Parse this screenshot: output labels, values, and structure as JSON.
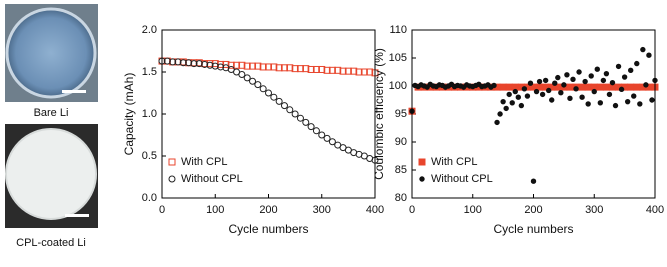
{
  "photos": [
    {
      "label": "Bare Li"
    },
    {
      "label": "CPL-coated Li"
    }
  ],
  "chart_data": [
    {
      "type": "scatter",
      "xlabel": "Cycle numbers",
      "ylabel": "Capacity (mAh)",
      "xlim": [
        0,
        400
      ],
      "xticks": [
        0,
        100,
        200,
        300,
        400
      ],
      "ylim": [
        0,
        2
      ],
      "yticks": [
        {
          "value": 0,
          "label": "0.0"
        },
        0.5,
        {
          "value": 1,
          "label": "1.0"
        },
        1.5,
        {
          "value": 2,
          "label": "2.0"
        }
      ],
      "legend": "lower left",
      "series": [
        {
          "name": "With CPL",
          "color": "#e8452c",
          "marker": "square",
          "filled": false,
          "x": [
            0,
            10,
            20,
            30,
            40,
            50,
            60,
            70,
            80,
            90,
            100,
            110,
            120,
            130,
            140,
            150,
            160,
            170,
            180,
            190,
            200,
            210,
            220,
            230,
            240,
            250,
            260,
            270,
            280,
            290,
            300,
            310,
            320,
            330,
            340,
            350,
            360,
            370,
            380,
            390,
            400
          ],
          "values": [
            1.63,
            1.63,
            1.62,
            1.62,
            1.62,
            1.61,
            1.61,
            1.61,
            1.6,
            1.6,
            1.6,
            1.59,
            1.59,
            1.58,
            1.58,
            1.58,
            1.57,
            1.57,
            1.57,
            1.56,
            1.56,
            1.56,
            1.55,
            1.55,
            1.55,
            1.54,
            1.54,
            1.54,
            1.53,
            1.53,
            1.53,
            1.52,
            1.52,
            1.52,
            1.51,
            1.51,
            1.51,
            1.5,
            1.5,
            1.5,
            1.49
          ]
        },
        {
          "name": "Without CPL",
          "color": "#222222",
          "marker": "circle",
          "filled": false,
          "x": [
            0,
            10,
            20,
            30,
            40,
            50,
            60,
            70,
            80,
            90,
            100,
            110,
            120,
            130,
            140,
            150,
            160,
            170,
            180,
            190,
            200,
            210,
            220,
            230,
            240,
            250,
            260,
            270,
            280,
            290,
            300,
            310,
            320,
            330,
            340,
            350,
            360,
            370,
            380,
            390,
            400
          ],
          "values": [
            1.63,
            1.63,
            1.62,
            1.62,
            1.61,
            1.61,
            1.6,
            1.6,
            1.59,
            1.58,
            1.57,
            1.56,
            1.55,
            1.53,
            1.5,
            1.47,
            1.43,
            1.39,
            1.35,
            1.3,
            1.25,
            1.2,
            1.15,
            1.1,
            1.05,
            1.0,
            0.95,
            0.9,
            0.85,
            0.8,
            0.75,
            0.71,
            0.67,
            0.63,
            0.6,
            0.57,
            0.54,
            0.52,
            0.5,
            0.47,
            0.45
          ]
        }
      ]
    },
    {
      "type": "scatter",
      "xlabel": "Cycle numbers",
      "ylabel": "Coulombic efficiency (%)",
      "xlim": [
        0,
        400
      ],
      "xticks": [
        0,
        100,
        200,
        300,
        400
      ],
      "ylim": [
        80,
        110
      ],
      "yticks": [
        80,
        85,
        90,
        95,
        100,
        105,
        110
      ],
      "legend": "lower left",
      "series": [
        {
          "name": "With CPL",
          "color": "#e8452c",
          "marker": "square",
          "filled": true,
          "x": [
            0,
            10,
            20,
            30,
            40,
            50,
            60,
            70,
            80,
            90,
            100,
            110,
            120,
            130,
            140,
            150,
            160,
            170,
            180,
            190,
            200,
            210,
            220,
            230,
            240,
            250,
            260,
            270,
            280,
            290,
            300,
            310,
            320,
            330,
            340,
            350,
            360,
            370,
            380,
            390,
            400
          ],
          "values": [
            95.5,
            99.8,
            99.8,
            99.8,
            99.8,
            99.8,
            99.8,
            99.8,
            99.8,
            99.8,
            99.8,
            99.8,
            99.8,
            99.8,
            99.8,
            99.8,
            99.8,
            99.8,
            99.8,
            99.8,
            99.8,
            99.8,
            99.8,
            99.8,
            99.8,
            99.8,
            99.8,
            99.8,
            99.8,
            99.8,
            99.8,
            99.8,
            99.8,
            99.8,
            99.8,
            99.8,
            99.8,
            99.8,
            99.8,
            99.8,
            99.8
          ]
        },
        {
          "name": "Without CPL",
          "color": "#111111",
          "marker": "circle",
          "filled": true,
          "x": [
            0,
            5,
            10,
            15,
            20,
            25,
            30,
            35,
            40,
            45,
            50,
            55,
            60,
            65,
            70,
            75,
            80,
            85,
            90,
            95,
            100,
            105,
            110,
            115,
            120,
            125,
            130,
            135,
            140,
            145,
            150,
            155,
            160,
            165,
            170,
            175,
            180,
            185,
            190,
            195,
            200,
            205,
            210,
            215,
            220,
            225,
            230,
            235,
            240,
            245,
            250,
            255,
            260,
            265,
            270,
            275,
            280,
            285,
            290,
            295,
            300,
            305,
            310,
            315,
            320,
            325,
            330,
            335,
            340,
            345,
            350,
            355,
            360,
            365,
            370,
            375,
            380,
            385,
            390,
            395,
            400
          ],
          "values": [
            95.5,
            100.1,
            99.9,
            100.2,
            100.0,
            99.8,
            100.3,
            100.0,
            99.9,
            100.2,
            100.1,
            99.8,
            100.0,
            100.3,
            99.9,
            100.1,
            100.0,
            99.8,
            100.2,
            100.0,
            99.9,
            100.1,
            100.3,
            99.9,
            100.0,
            100.2,
            99.8,
            100.1,
            93.5,
            95.0,
            97.2,
            96.0,
            98.5,
            97.0,
            99.0,
            98.0,
            96.5,
            99.5,
            98.2,
            100.5,
            83.0,
            99.0,
            100.8,
            98.5,
            101.0,
            99.2,
            97.5,
            100.5,
            101.5,
            98.8,
            100.2,
            102.0,
            97.8,
            101.2,
            99.5,
            102.5,
            98.0,
            100.8,
            96.8,
            101.8,
            99.0,
            103.0,
            97.0,
            101.0,
            102.2,
            98.5,
            100.6,
            96.5,
            103.5,
            99.4,
            101.6,
            97.2,
            102.8,
            98.2,
            104.0,
            96.8,
            106.5,
            100.2,
            105.5,
            97.5,
            101.0
          ]
        }
      ]
    }
  ]
}
